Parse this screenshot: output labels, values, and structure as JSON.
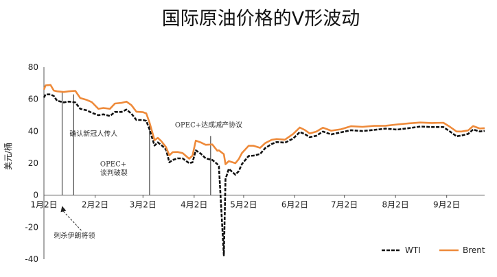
{
  "chart_data": {
    "type": "line",
    "title": "国际原油价格的V形波动",
    "ylabel": "美元/桶",
    "xlabel": "",
    "ylim": [
      -40,
      80
    ],
    "yticks": [
      -40,
      -20,
      0,
      20,
      40,
      60,
      80
    ],
    "xlim": [
      "2020-01-02",
      "2020-09-25"
    ],
    "xticks": [
      {
        "date": "2020-01-02",
        "label": "1月2日"
      },
      {
        "date": "2020-02-02",
        "label": "2月2日"
      },
      {
        "date": "2020-03-02",
        "label": "3月2日"
      },
      {
        "date": "2020-04-02",
        "label": "4月2日"
      },
      {
        "date": "2020-05-02",
        "label": "5月2日"
      },
      {
        "date": "2020-06-02",
        "label": "6月2日"
      },
      {
        "date": "2020-07-02",
        "label": "7月2日"
      },
      {
        "date": "2020-08-02",
        "label": "8月2日"
      },
      {
        "date": "2020-09-02",
        "label": "9月2日"
      }
    ],
    "legend": "bottom-right",
    "grid": false,
    "series": [
      {
        "name": "WTI",
        "color": "#111111",
        "style": "dashed",
        "points": [
          [
            "2020-01-02",
            61
          ],
          [
            "2020-01-03",
            63
          ],
          [
            "2020-01-06",
            63
          ],
          [
            "2020-01-08",
            62
          ],
          [
            "2020-01-10",
            59
          ],
          [
            "2020-01-14",
            58
          ],
          [
            "2020-01-17",
            58.5
          ],
          [
            "2020-01-21",
            58
          ],
          [
            "2020-01-24",
            54
          ],
          [
            "2020-01-28",
            53
          ],
          [
            "2020-01-31",
            51.5
          ],
          [
            "2020-02-04",
            50
          ],
          [
            "2020-02-07",
            50.5
          ],
          [
            "2020-02-11",
            49.5
          ],
          [
            "2020-02-14",
            52
          ],
          [
            "2020-02-18",
            52
          ],
          [
            "2020-02-21",
            53.5
          ],
          [
            "2020-02-24",
            51
          ],
          [
            "2020-02-27",
            47
          ],
          [
            "2020-03-02",
            47
          ],
          [
            "2020-03-04",
            46.5
          ],
          [
            "2020-03-06",
            41
          ],
          [
            "2020-03-09",
            31
          ],
          [
            "2020-03-11",
            33
          ],
          [
            "2020-03-13",
            31.5
          ],
          [
            "2020-03-16",
            28.5
          ],
          [
            "2020-03-18",
            20.5
          ],
          [
            "2020-03-20",
            22
          ],
          [
            "2020-03-23",
            23
          ],
          [
            "2020-03-26",
            23
          ],
          [
            "2020-03-30",
            20
          ],
          [
            "2020-04-01",
            20.5
          ],
          [
            "2020-04-03",
            28
          ],
          [
            "2020-04-06",
            26
          ],
          [
            "2020-04-09",
            23
          ],
          [
            "2020-04-13",
            22
          ],
          [
            "2020-04-16",
            19.5
          ],
          [
            "2020-04-17",
            18
          ],
          [
            "2020-04-20",
            -37.6
          ],
          [
            "2020-04-21",
            10
          ],
          [
            "2020-04-23",
            16.5
          ],
          [
            "2020-04-27",
            12.8
          ],
          [
            "2020-04-29",
            15
          ],
          [
            "2020-05-01",
            19.5
          ],
          [
            "2020-05-05",
            24.5
          ],
          [
            "2020-05-08",
            24.7
          ],
          [
            "2020-05-12",
            25.8
          ],
          [
            "2020-05-15",
            29.4
          ],
          [
            "2020-05-19",
            32
          ],
          [
            "2020-05-22",
            33.2
          ],
          [
            "2020-05-27",
            32.8
          ],
          [
            "2020-06-01",
            35.4
          ],
          [
            "2020-06-05",
            39.5
          ],
          [
            "2020-06-08",
            38.2
          ],
          [
            "2020-06-11",
            36.3
          ],
          [
            "2020-06-15",
            37.1
          ],
          [
            "2020-06-19",
            39.8
          ],
          [
            "2020-06-24",
            38
          ],
          [
            "2020-06-30",
            39.3
          ],
          [
            "2020-07-06",
            40.6
          ],
          [
            "2020-07-13",
            40.1
          ],
          [
            "2020-07-20",
            40.8
          ],
          [
            "2020-07-27",
            41.6
          ],
          [
            "2020-08-03",
            41
          ],
          [
            "2020-08-10",
            41.9
          ],
          [
            "2020-08-17",
            42.9
          ],
          [
            "2020-08-24",
            42.6
          ],
          [
            "2020-08-31",
            42.6
          ],
          [
            "2020-09-04",
            39.8
          ],
          [
            "2020-09-08",
            36.8
          ],
          [
            "2020-09-11",
            37.3
          ],
          [
            "2020-09-15",
            38.3
          ],
          [
            "2020-09-18",
            41.1
          ],
          [
            "2020-09-22",
            39.8
          ],
          [
            "2020-09-25",
            40.2
          ]
        ]
      },
      {
        "name": "Brent",
        "color": "#ee8a3a",
        "style": "solid",
        "points": [
          [
            "2020-01-02",
            66
          ],
          [
            "2020-01-03",
            68.6
          ],
          [
            "2020-01-06",
            68.9
          ],
          [
            "2020-01-08",
            65.4
          ],
          [
            "2020-01-10",
            64.9
          ],
          [
            "2020-01-14",
            64.5
          ],
          [
            "2020-01-17",
            64.9
          ],
          [
            "2020-01-21",
            65.2
          ],
          [
            "2020-01-24",
            60.7
          ],
          [
            "2020-01-28",
            59.5
          ],
          [
            "2020-01-31",
            58.2
          ],
          [
            "2020-02-04",
            54
          ],
          [
            "2020-02-07",
            54.5
          ],
          [
            "2020-02-11",
            54
          ],
          [
            "2020-02-14",
            57.3
          ],
          [
            "2020-02-18",
            57.7
          ],
          [
            "2020-02-21",
            58.5
          ],
          [
            "2020-02-24",
            56.3
          ],
          [
            "2020-02-27",
            52.2
          ],
          [
            "2020-03-02",
            51.9
          ],
          [
            "2020-03-04",
            51.1
          ],
          [
            "2020-03-06",
            45.3
          ],
          [
            "2020-03-09",
            34.4
          ],
          [
            "2020-03-11",
            35.8
          ],
          [
            "2020-03-13",
            33.9
          ],
          [
            "2020-03-16",
            30
          ],
          [
            "2020-03-18",
            24.9
          ],
          [
            "2020-03-20",
            26.9
          ],
          [
            "2020-03-23",
            27
          ],
          [
            "2020-03-26",
            26.3
          ],
          [
            "2020-03-30",
            22.8
          ],
          [
            "2020-04-01",
            24.7
          ],
          [
            "2020-04-03",
            34.1
          ],
          [
            "2020-04-06",
            33
          ],
          [
            "2020-04-09",
            31.5
          ],
          [
            "2020-04-13",
            31.7
          ],
          [
            "2020-04-16",
            27.8
          ],
          [
            "2020-04-17",
            28
          ],
          [
            "2020-04-20",
            25.6
          ],
          [
            "2020-04-21",
            19.3
          ],
          [
            "2020-04-23",
            21.3
          ],
          [
            "2020-04-27",
            20
          ],
          [
            "2020-04-29",
            22.5
          ],
          [
            "2020-05-01",
            26.4
          ],
          [
            "2020-05-05",
            30.9
          ],
          [
            "2020-05-08",
            30.9
          ],
          [
            "2020-05-12",
            29.6
          ],
          [
            "2020-05-15",
            32.5
          ],
          [
            "2020-05-19",
            34.6
          ],
          [
            "2020-05-22",
            35.1
          ],
          [
            "2020-05-27",
            34.7
          ],
          [
            "2020-06-01",
            38.3
          ],
          [
            "2020-06-05",
            42.3
          ],
          [
            "2020-06-08",
            40.8
          ],
          [
            "2020-06-11",
            38.6
          ],
          [
            "2020-06-15",
            39.7
          ],
          [
            "2020-06-19",
            42.2
          ],
          [
            "2020-06-24",
            40.3
          ],
          [
            "2020-06-30",
            41.2
          ],
          [
            "2020-07-06",
            43.1
          ],
          [
            "2020-07-13",
            42.7
          ],
          [
            "2020-07-20",
            43.3
          ],
          [
            "2020-07-27",
            43.4
          ],
          [
            "2020-08-03",
            44.2
          ],
          [
            "2020-08-10",
            44.9
          ],
          [
            "2020-08-17",
            45.4
          ],
          [
            "2020-08-24",
            45.1
          ],
          [
            "2020-08-31",
            45.3
          ],
          [
            "2020-09-04",
            42.7
          ],
          [
            "2020-09-08",
            39.8
          ],
          [
            "2020-09-11",
            39.8
          ],
          [
            "2020-09-15",
            40.5
          ],
          [
            "2020-09-18",
            43.2
          ],
          [
            "2020-09-22",
            41.7
          ],
          [
            "2020-09-25",
            41.9
          ]
        ]
      }
    ],
    "annotations": [
      {
        "id": "iran",
        "date": "2020-01-13",
        "lines": [
          "刺杀伊朗将领"
        ]
      },
      {
        "id": "virus",
        "date": "2020-01-20",
        "lines": [
          "确认新冠人传人"
        ]
      },
      {
        "id": "opec-talks",
        "date": "2020-03-06",
        "lines": [
          "OPEC+",
          "谈判破裂"
        ]
      },
      {
        "id": "opec-deal",
        "date": "2020-04-12",
        "lines": [
          "OPEC+达成减产协议"
        ]
      }
    ]
  }
}
